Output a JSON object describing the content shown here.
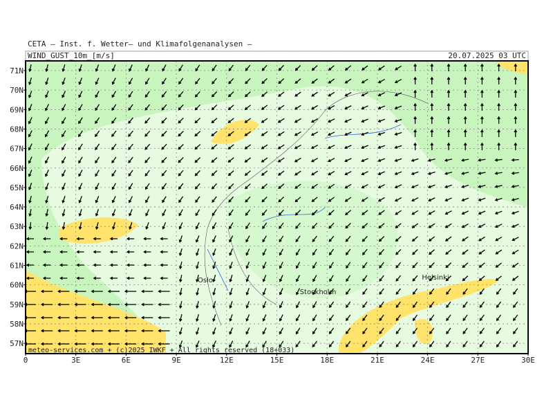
{
  "header": {
    "title": "CETA – Inst. f. Wetter– und Klimafolgenanalysen –",
    "variable": "WIND_GUST_10m_[m/s]",
    "timestamp": "20.07.2025 03 UTC"
  },
  "axes": {
    "lat_labels": [
      "71N",
      "70N",
      "69N",
      "68N",
      "67N",
      "66N",
      "65N",
      "64N",
      "63N",
      "62N",
      "61N",
      "60N",
      "59N",
      "58N",
      "57N"
    ],
    "lon_labels": [
      "0",
      "3E",
      "6E",
      "9E",
      "12E",
      "15E",
      "18E",
      "21E",
      "24E",
      "27E",
      "30E"
    ]
  },
  "cities": [
    "Oslo",
    "Stockholm",
    "Helsinki"
  ],
  "footer": "meteo-services.com + (c)2025 IWKF + All rights reserved (18+033)"
}
